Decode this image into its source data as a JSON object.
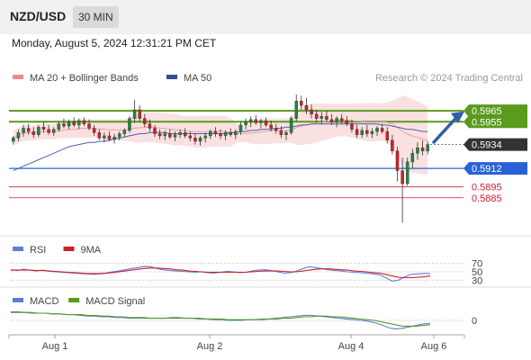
{
  "header": {
    "pair": "NZD/USD",
    "timeframe": "30 MIN",
    "datetime": "Monday, August 5, 2024 12:31:21 PM CET"
  },
  "colors": {
    "candle_up": "#1b8a3a",
    "candle_down": "#d0202a",
    "bollinger": "#f6c8c8",
    "ma50": "#4a5fb0",
    "resistance": "#5a9a1c",
    "support": "#2a62d6",
    "support_red": "#d0202a",
    "arrow": "#2b5fa8",
    "current": "#333333",
    "rsi": "#5b7fd6",
    "rsi_ma": "#d0202a",
    "macd": "#5b7fd6",
    "macd_signal": "#5a9a1c"
  },
  "chart_data": [
    {
      "type": "candlestick",
      "legend": [
        {
          "label": "MA 20 + Bollinger Bands",
          "color": "#f08a8a"
        },
        {
          "label": "MA 50",
          "color": "#2f4f8f"
        }
      ],
      "watermark": "Research © 2024 Trading Central",
      "ylim": [
        0.585,
        0.599
      ],
      "x_ticks": [
        "Aug 1",
        "Aug 2",
        "Aug 4",
        "Aug 6"
      ],
      "levels": [
        {
          "value": 0.5965,
          "label": "0.5965",
          "kind": "resistance"
        },
        {
          "value": 0.5955,
          "label": "0.5955",
          "kind": "resistance"
        },
        {
          "value": 0.5934,
          "label": "0.5934",
          "kind": "current"
        },
        {
          "value": 0.5912,
          "label": "0.5912",
          "kind": "pivot"
        },
        {
          "value": 0.5895,
          "label": "0.5895",
          "kind": "support"
        },
        {
          "value": 0.5885,
          "label": "0.5885",
          "kind": "support"
        }
      ],
      "candles": [
        [
          0.5937,
          0.5942,
          0.5934,
          0.594
        ],
        [
          0.594,
          0.5948,
          0.5937,
          0.5945
        ],
        [
          0.5945,
          0.5952,
          0.5941,
          0.5949
        ],
        [
          0.5949,
          0.5953,
          0.5943,
          0.5946
        ],
        [
          0.5946,
          0.595,
          0.594,
          0.5943
        ],
        [
          0.5943,
          0.5952,
          0.5941,
          0.595
        ],
        [
          0.595,
          0.5955,
          0.5945,
          0.5948
        ],
        [
          0.5948,
          0.5952,
          0.5943,
          0.5945
        ],
        [
          0.5945,
          0.595,
          0.5942,
          0.5948
        ],
        [
          0.5948,
          0.5955,
          0.5946,
          0.5953
        ],
        [
          0.5953,
          0.5958,
          0.5949,
          0.5951
        ],
        [
          0.5951,
          0.5957,
          0.5948,
          0.5955
        ],
        [
          0.5955,
          0.5959,
          0.595,
          0.5952
        ],
        [
          0.5952,
          0.5958,
          0.5948,
          0.5956
        ],
        [
          0.5956,
          0.5959,
          0.5951,
          0.5953
        ],
        [
          0.5953,
          0.5957,
          0.5947,
          0.5949
        ],
        [
          0.5949,
          0.5952,
          0.5942,
          0.5945
        ],
        [
          0.5945,
          0.5948,
          0.5938,
          0.594
        ],
        [
          0.594,
          0.5945,
          0.5936,
          0.5942
        ],
        [
          0.5942,
          0.5946,
          0.5937,
          0.5939
        ],
        [
          0.5939,
          0.5944,
          0.5935,
          0.5941
        ],
        [
          0.5941,
          0.5946,
          0.5938,
          0.5944
        ],
        [
          0.5944,
          0.5949,
          0.5941,
          0.5947
        ],
        [
          0.5947,
          0.596,
          0.5945,
          0.5958
        ],
        [
          0.5958,
          0.5975,
          0.5954,
          0.5966
        ],
        [
          0.5966,
          0.597,
          0.5955,
          0.5958
        ],
        [
          0.5958,
          0.5962,
          0.595,
          0.5953
        ],
        [
          0.5953,
          0.5957,
          0.5946,
          0.5949
        ],
        [
          0.5949,
          0.5952,
          0.5941,
          0.5944
        ],
        [
          0.5944,
          0.5948,
          0.5939,
          0.5942
        ],
        [
          0.5942,
          0.5947,
          0.5938,
          0.5944
        ],
        [
          0.5944,
          0.5948,
          0.5939,
          0.5941
        ],
        [
          0.5941,
          0.5946,
          0.5937,
          0.5943
        ],
        [
          0.5943,
          0.5948,
          0.594,
          0.5945
        ],
        [
          0.5945,
          0.5949,
          0.594,
          0.5942
        ],
        [
          0.5942,
          0.5946,
          0.5937,
          0.594
        ],
        [
          0.594,
          0.5944,
          0.5934,
          0.5937
        ],
        [
          0.5937,
          0.5942,
          0.5933,
          0.594
        ],
        [
          0.594,
          0.5945,
          0.5936,
          0.5942
        ],
        [
          0.5942,
          0.5948,
          0.5939,
          0.5946
        ],
        [
          0.5946,
          0.595,
          0.5941,
          0.5944
        ],
        [
          0.5944,
          0.5948,
          0.5939,
          0.5942
        ],
        [
          0.5942,
          0.5947,
          0.5938,
          0.5945
        ],
        [
          0.5945,
          0.5949,
          0.5941,
          0.5943
        ],
        [
          0.5943,
          0.5948,
          0.5939,
          0.5946
        ],
        [
          0.5946,
          0.5955,
          0.5943,
          0.5952
        ],
        [
          0.5952,
          0.5958,
          0.5948,
          0.5955
        ],
        [
          0.5955,
          0.596,
          0.595,
          0.5957
        ],
        [
          0.5957,
          0.5961,
          0.5952,
          0.5954
        ],
        [
          0.5954,
          0.5958,
          0.5949,
          0.5956
        ],
        [
          0.5956,
          0.5959,
          0.595,
          0.5952
        ],
        [
          0.5952,
          0.5956,
          0.5946,
          0.5949
        ],
        [
          0.5949,
          0.5953,
          0.5944,
          0.5947
        ],
        [
          0.5947,
          0.5951,
          0.594,
          0.5943
        ],
        [
          0.5943,
          0.5947,
          0.5938,
          0.5945
        ],
        [
          0.5945,
          0.596,
          0.5943,
          0.5958
        ],
        [
          0.5958,
          0.598,
          0.5955,
          0.5974
        ],
        [
          0.5974,
          0.5979,
          0.5966,
          0.597
        ],
        [
          0.597,
          0.5977,
          0.5962,
          0.5966
        ],
        [
          0.5966,
          0.5971,
          0.5958,
          0.5962
        ],
        [
          0.5962,
          0.5966,
          0.5955,
          0.5958
        ],
        [
          0.5958,
          0.5964,
          0.5953,
          0.596
        ],
        [
          0.596,
          0.5965,
          0.5955,
          0.5957
        ],
        [
          0.5957,
          0.5962,
          0.5952,
          0.5955
        ],
        [
          0.5955,
          0.596,
          0.595,
          0.5958
        ],
        [
          0.5958,
          0.5962,
          0.5953,
          0.5956
        ],
        [
          0.5956,
          0.596,
          0.5951,
          0.5953
        ],
        [
          0.5953,
          0.5957,
          0.5945,
          0.5948
        ],
        [
          0.5948,
          0.5952,
          0.594,
          0.5943
        ],
        [
          0.5943,
          0.595,
          0.594,
          0.5947
        ],
        [
          0.5947,
          0.5952,
          0.5941,
          0.5944
        ],
        [
          0.5944,
          0.5949,
          0.594,
          0.5946
        ],
        [
          0.5946,
          0.5951,
          0.5942,
          0.5949
        ],
        [
          0.5949,
          0.5953,
          0.5944,
          0.5946
        ],
        [
          0.5946,
          0.595,
          0.5935,
          0.5938
        ],
        [
          0.5938,
          0.5943,
          0.5925,
          0.5928
        ],
        [
          0.5928,
          0.5932,
          0.59,
          0.591
        ],
        [
          0.591,
          0.5922,
          0.5862,
          0.5898
        ],
        [
          0.5898,
          0.5922,
          0.5896,
          0.5918
        ],
        [
          0.5918,
          0.593,
          0.5912,
          0.5926
        ],
        [
          0.5926,
          0.5936,
          0.592,
          0.5931
        ],
        [
          0.5931,
          0.5938,
          0.5924,
          0.5928
        ],
        [
          0.5928,
          0.5937,
          0.5925,
          0.5934
        ]
      ],
      "ma50": [
        0.591,
        0.5912,
        0.5914,
        0.5916,
        0.5918,
        0.592,
        0.5922,
        0.5924,
        0.5926,
        0.5928,
        0.593,
        0.5932,
        0.5933,
        0.5934,
        0.5935,
        0.5936,
        0.5936,
        0.5937,
        0.5937,
        0.5938,
        0.5939,
        0.594,
        0.5941,
        0.5942,
        0.5943,
        0.5944,
        0.5944,
        0.5945,
        0.5945,
        0.5945,
        0.5945,
        0.5944,
        0.5944,
        0.5944,
        0.5944,
        0.5944,
        0.5944,
        0.5944,
        0.5944,
        0.5944,
        0.5944,
        0.5944,
        0.5944,
        0.5945,
        0.5945,
        0.5946,
        0.5946,
        0.5947,
        0.5947,
        0.5948,
        0.5948,
        0.5948,
        0.5949,
        0.5949,
        0.595,
        0.595,
        0.5951,
        0.5952,
        0.5952,
        0.5953,
        0.5953,
        0.5953,
        0.5953,
        0.5953,
        0.5953,
        0.5953,
        0.5953,
        0.5953,
        0.5953,
        0.5953,
        0.5953,
        0.5953,
        0.5953,
        0.5952,
        0.5952,
        0.5951,
        0.595,
        0.5949,
        0.5948,
        0.5948,
        0.5947,
        0.5946,
        0.5946
      ]
    },
    {
      "type": "line",
      "name": "rsi",
      "legend": [
        {
          "label": "RSI",
          "color": "#5b7fd6"
        },
        {
          "label": "9MA",
          "color": "#d0202a"
        }
      ],
      "ylim": [
        20,
        80
      ],
      "y_ticks": [
        70,
        50,
        30
      ],
      "series": [
        {
          "name": "RSI",
          "values": [
            55,
            53,
            56,
            54,
            52,
            54,
            51,
            50,
            49,
            48,
            47,
            46,
            45,
            44,
            45,
            47,
            50,
            52,
            55,
            58,
            60,
            63,
            62,
            58,
            55,
            53,
            52,
            51,
            50,
            49,
            50,
            48,
            47,
            49,
            51,
            50,
            48,
            49,
            52,
            54,
            55,
            53,
            50,
            47,
            48,
            52,
            58,
            62,
            60,
            57,
            55,
            53,
            52,
            50,
            49,
            48,
            47,
            45,
            43,
            36,
            28,
            30,
            38,
            44,
            45,
            46,
            46
          ]
        },
        {
          "name": "9MA",
          "values": [
            54,
            54,
            54,
            54,
            53,
            53,
            52,
            51,
            50,
            49,
            48,
            47,
            46,
            46,
            46,
            47,
            48,
            50,
            52,
            54,
            56,
            58,
            59,
            59,
            58,
            57,
            55,
            54,
            52,
            51,
            50,
            49,
            49,
            49,
            49,
            49,
            49,
            49,
            50,
            51,
            52,
            52,
            52,
            51,
            50,
            50,
            52,
            54,
            56,
            57,
            57,
            56,
            55,
            54,
            52,
            51,
            50,
            48,
            47,
            44,
            40,
            37,
            36,
            36,
            37,
            38,
            40
          ]
        }
      ]
    },
    {
      "type": "line",
      "name": "macd",
      "legend": [
        {
          "label": "MACD",
          "color": "#5b7fd6"
        },
        {
          "label": "MACD Signal",
          "color": "#5a9a1c"
        }
      ],
      "ylim": [
        -0.002,
        0.002
      ],
      "y_ticks": [
        0
      ],
      "y_tick_labels": [
        "0"
      ],
      "series": [
        {
          "name": "MACD",
          "values": [
            0.0012,
            0.0012,
            0.0011,
            0.0011,
            0.001,
            0.001,
            0.0009,
            0.0009,
            0.0008,
            0.0008,
            0.0007,
            0.0006,
            0.0006,
            0.0005,
            0.0005,
            0.0004,
            0.0004,
            0.0003,
            0.0003,
            0.0003,
            0.0003,
            0.0003,
            0.0003,
            0.0004,
            0.0004,
            0.0003,
            0.0003,
            0.0002,
            0.0002,
            0.0001,
            0.0001,
            0.0,
            0.0,
            0.0,
            0.0001,
            0.0001,
            0.0002,
            0.0002,
            0.0003,
            0.0004,
            0.0005,
            0.0006,
            0.0007,
            0.0007,
            0.0006,
            0.0005,
            0.0004,
            0.0003,
            0.0002,
            0.0001,
            0.0,
            -0.0001,
            -0.0003,
            -0.0006,
            -0.001,
            -0.0012,
            -0.0011,
            -0.0009,
            -0.0007,
            -0.0005,
            -0.0004
          ]
        },
        {
          "name": "MACD Signal",
          "values": [
            0.0011,
            0.0011,
            0.0011,
            0.001,
            0.001,
            0.001,
            0.0009,
            0.0009,
            0.0008,
            0.0008,
            0.0008,
            0.0007,
            0.0007,
            0.0006,
            0.0006,
            0.0005,
            0.0005,
            0.0004,
            0.0004,
            0.0004,
            0.0003,
            0.0003,
            0.0003,
            0.0003,
            0.0003,
            0.0003,
            0.0003,
            0.0003,
            0.0002,
            0.0002,
            0.0002,
            0.0001,
            0.0001,
            0.0001,
            0.0001,
            0.0001,
            0.0001,
            0.0002,
            0.0002,
            0.0003,
            0.0003,
            0.0004,
            0.0005,
            0.0005,
            0.0006,
            0.0006,
            0.0005,
            0.0005,
            0.0004,
            0.0003,
            0.0002,
            0.0001,
            0.0,
            -0.0002,
            -0.0004,
            -0.0006,
            -0.0008,
            -0.0008,
            -0.0008,
            -0.0007,
            -0.0006
          ]
        }
      ]
    }
  ]
}
